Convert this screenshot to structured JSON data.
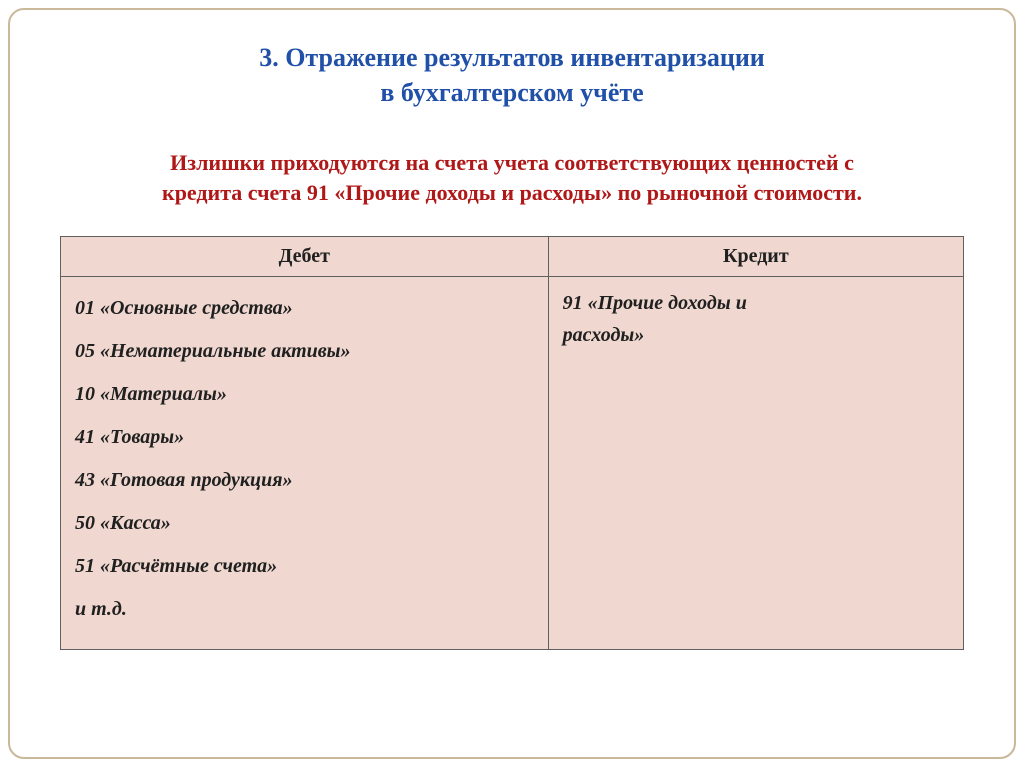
{
  "heading": {
    "line1": "3. Отражение результатов инвентаризации",
    "line2": "в бухгалтерском учёте"
  },
  "subheading": {
    "line1": "Излишки приходуются на счета учета соответствующих ценностей с",
    "line2": "кредита счета 91 «Прочие доходы и расходы» по рыночной стоимости."
  },
  "table": {
    "columns": [
      "Дебет",
      "Кредит"
    ],
    "debit_items": [
      "01 «Основные средства»",
      "05 «Нематериальные активы»",
      "10 «Материалы»",
      "41 «Товары»",
      "43 «Готовая продукция»",
      "50 «Касса»",
      "51 «Расчётные счета»",
      "и т.д."
    ],
    "credit_items": [
      "91 «Прочие доходы и",
      "расходы»"
    ],
    "header_bg": "#f0d8d0",
    "cell_bg": "#f0d8d0",
    "border_color": "#606060",
    "header_fontsize": 20,
    "cell_fontsize": 20
  },
  "colors": {
    "heading": "#2050a8",
    "subheading": "#b01818",
    "frame_border": "#c9b89a",
    "text": "#202020",
    "background": "#ffffff"
  }
}
